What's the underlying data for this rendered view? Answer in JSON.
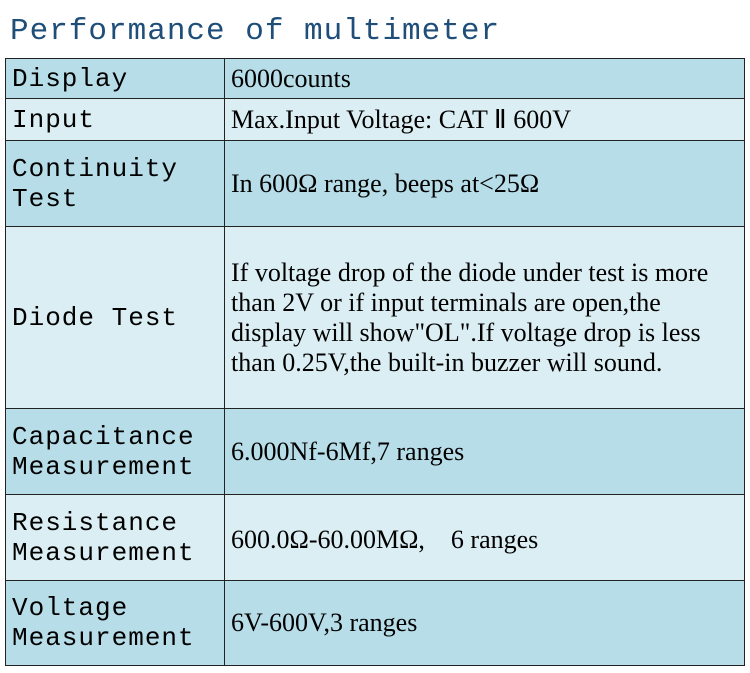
{
  "title": "Performance of multimeter",
  "table": {
    "rows": [
      [
        "Display",
        "6000counts"
      ],
      [
        "Input",
        "Max.Input Voltage: CAT Ⅱ 600V"
      ],
      [
        "Continuity Test",
        "In 600Ω range, beeps at<25Ω"
      ],
      [
        "Diode Test",
        "If voltage drop of the diode under test is more than 2V or if input terminals are open,the display will show\"OL\".If voltage drop is less than 0.25V,the built-in buzzer will sound."
      ],
      [
        "Capacitance Measurement",
        "6.000Nf-6Mf,7 ranges"
      ],
      [
        "Resistance Measurement",
        "600.0Ω-60.00MΩ,　6 ranges"
      ],
      [
        "Voltage Measurement",
        "6V-600V,3 ranges"
      ]
    ]
  }
}
